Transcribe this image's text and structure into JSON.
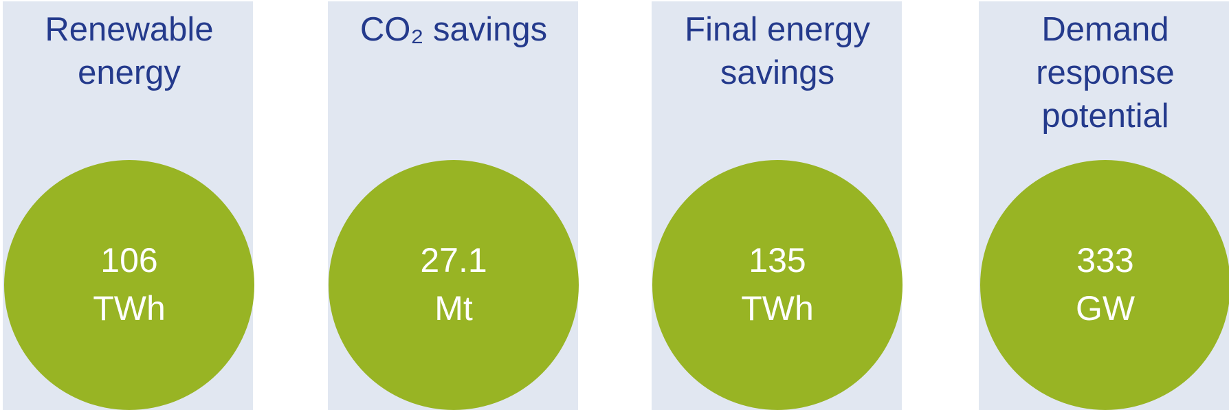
{
  "items": [
    {
      "title": [
        "Renewable",
        "energy"
      ],
      "value": 106,
      "unit": "TWh"
    },
    {
      "title": [
        "CO₂ savings"
      ],
      "value": 27.1,
      "unit": "Mt"
    },
    {
      "title": [
        "Final energy",
        "savings"
      ],
      "value": 135,
      "unit": "TWh"
    },
    {
      "title": [
        "Demand",
        "response",
        "potential"
      ],
      "value": 333,
      "unit": "GW"
    }
  ]
}
